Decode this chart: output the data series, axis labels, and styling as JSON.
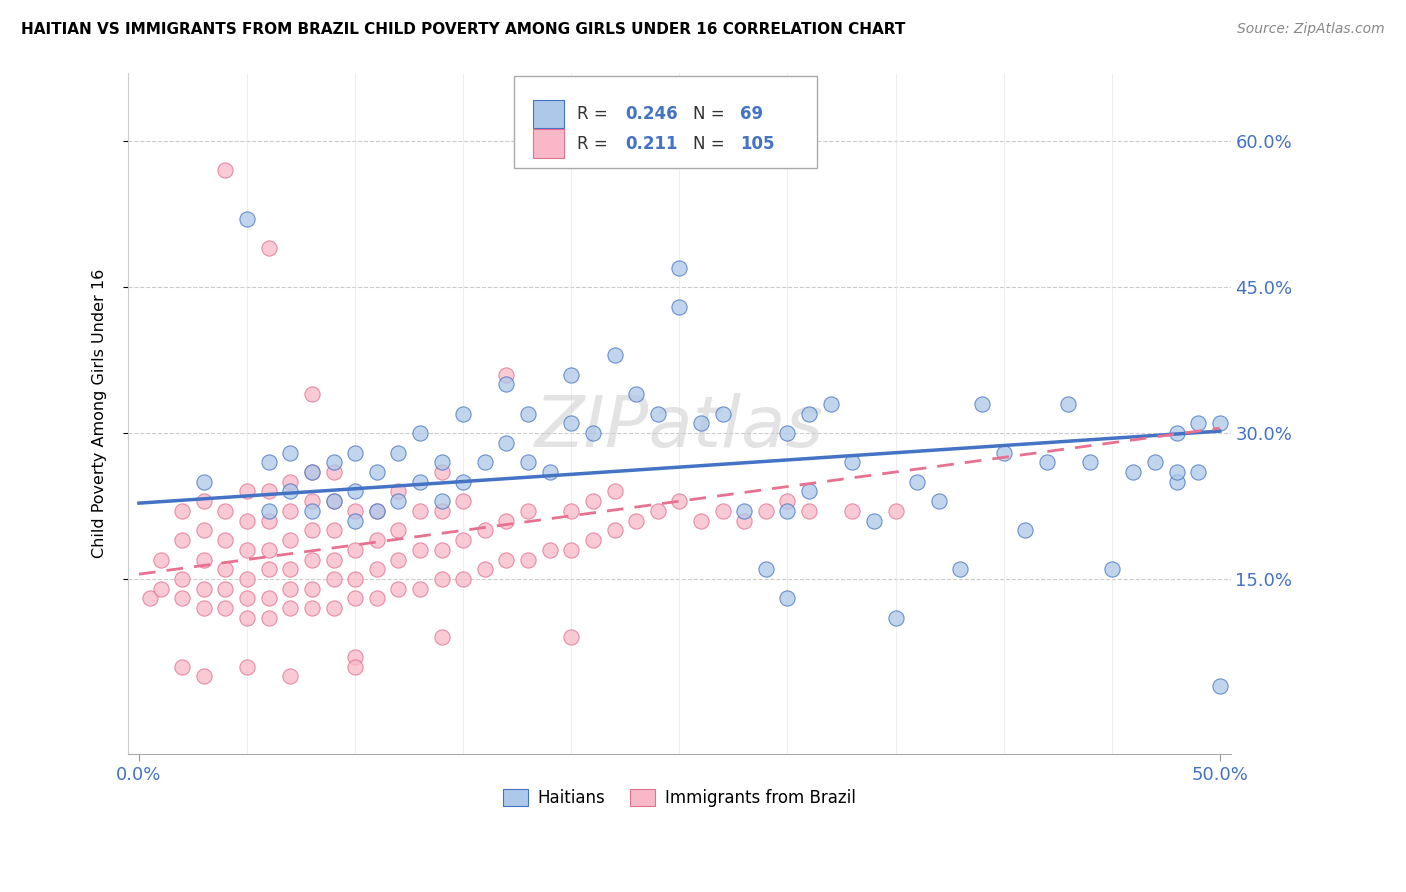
{
  "title": "HAITIAN VS IMMIGRANTS FROM BRAZIL CHILD POVERTY AMONG GIRLS UNDER 16 CORRELATION CHART",
  "source": "Source: ZipAtlas.com",
  "ylabel": "Child Poverty Among Girls Under 16",
  "xlim": [
    0.0,
    0.5
  ],
  "ylim": [
    -0.03,
    0.67
  ],
  "ytick_vals": [
    0.15,
    0.3,
    0.45,
    0.6
  ],
  "ytick_labels": [
    "15.0%",
    "30.0%",
    "45.0%",
    "60.0%"
  ],
  "color_haiti_fill": "#adc8e8",
  "color_haiti_edge": "#4472C4",
  "color_brazil_fill": "#f8b8c8",
  "color_brazil_edge": "#e07090",
  "color_haiti_line": "#4472C4",
  "color_brazil_line": "#e87090",
  "haiti_line_start_y": 0.228,
  "haiti_line_end_y": 0.302,
  "brazil_line_start_y": 0.155,
  "brazil_line_end_y": 0.305,
  "haitians_x": [
    0.03,
    0.05,
    0.06,
    0.06,
    0.07,
    0.07,
    0.08,
    0.08,
    0.09,
    0.09,
    0.1,
    0.1,
    0.1,
    0.11,
    0.11,
    0.12,
    0.12,
    0.13,
    0.13,
    0.14,
    0.14,
    0.15,
    0.15,
    0.16,
    0.17,
    0.17,
    0.18,
    0.18,
    0.19,
    0.2,
    0.2,
    0.21,
    0.22,
    0.23,
    0.24,
    0.25,
    0.25,
    0.26,
    0.27,
    0.28,
    0.29,
    0.3,
    0.3,
    0.31,
    0.32,
    0.33,
    0.34,
    0.35,
    0.36,
    0.37,
    0.38,
    0.39,
    0.4,
    0.41,
    0.42,
    0.43,
    0.44,
    0.45,
    0.46,
    0.47,
    0.48,
    0.49,
    0.49,
    0.5,
    0.5,
    0.3,
    0.31,
    0.48,
    0.48
  ],
  "haitians_y": [
    0.25,
    0.52,
    0.22,
    0.27,
    0.24,
    0.28,
    0.22,
    0.26,
    0.23,
    0.27,
    0.21,
    0.24,
    0.28,
    0.22,
    0.26,
    0.23,
    0.28,
    0.25,
    0.3,
    0.23,
    0.27,
    0.25,
    0.32,
    0.27,
    0.29,
    0.35,
    0.27,
    0.32,
    0.26,
    0.31,
    0.36,
    0.3,
    0.38,
    0.34,
    0.32,
    0.43,
    0.47,
    0.31,
    0.32,
    0.22,
    0.16,
    0.13,
    0.3,
    0.32,
    0.33,
    0.27,
    0.21,
    0.11,
    0.25,
    0.23,
    0.16,
    0.33,
    0.28,
    0.2,
    0.27,
    0.33,
    0.27,
    0.16,
    0.26,
    0.27,
    0.25,
    0.31,
    0.26,
    0.31,
    0.04,
    0.22,
    0.24,
    0.3,
    0.26
  ],
  "brazil_x": [
    0.005,
    0.01,
    0.01,
    0.02,
    0.02,
    0.02,
    0.02,
    0.03,
    0.03,
    0.03,
    0.03,
    0.03,
    0.04,
    0.04,
    0.04,
    0.04,
    0.04,
    0.05,
    0.05,
    0.05,
    0.05,
    0.05,
    0.05,
    0.06,
    0.06,
    0.06,
    0.06,
    0.06,
    0.06,
    0.07,
    0.07,
    0.07,
    0.07,
    0.07,
    0.07,
    0.08,
    0.08,
    0.08,
    0.08,
    0.08,
    0.08,
    0.09,
    0.09,
    0.09,
    0.09,
    0.09,
    0.09,
    0.1,
    0.1,
    0.1,
    0.1,
    0.11,
    0.11,
    0.11,
    0.11,
    0.12,
    0.12,
    0.12,
    0.12,
    0.13,
    0.13,
    0.13,
    0.14,
    0.14,
    0.14,
    0.14,
    0.15,
    0.15,
    0.15,
    0.16,
    0.16,
    0.17,
    0.17,
    0.18,
    0.18,
    0.19,
    0.2,
    0.2,
    0.21,
    0.21,
    0.22,
    0.22,
    0.23,
    0.24,
    0.25,
    0.26,
    0.27,
    0.28,
    0.29,
    0.3,
    0.31,
    0.33,
    0.35,
    0.04,
    0.06,
    0.08,
    0.1,
    0.14,
    0.17,
    0.2,
    0.1,
    0.07,
    0.05,
    0.03,
    0.02
  ],
  "brazil_y": [
    0.13,
    0.14,
    0.17,
    0.13,
    0.15,
    0.19,
    0.22,
    0.12,
    0.14,
    0.17,
    0.2,
    0.23,
    0.12,
    0.14,
    0.16,
    0.19,
    0.22,
    0.11,
    0.13,
    0.15,
    0.18,
    0.21,
    0.24,
    0.11,
    0.13,
    0.16,
    0.18,
    0.21,
    0.24,
    0.12,
    0.14,
    0.16,
    0.19,
    0.22,
    0.25,
    0.12,
    0.14,
    0.17,
    0.2,
    0.23,
    0.26,
    0.12,
    0.15,
    0.17,
    0.2,
    0.23,
    0.26,
    0.13,
    0.15,
    0.18,
    0.22,
    0.13,
    0.16,
    0.19,
    0.22,
    0.14,
    0.17,
    0.2,
    0.24,
    0.14,
    0.18,
    0.22,
    0.15,
    0.18,
    0.22,
    0.26,
    0.15,
    0.19,
    0.23,
    0.16,
    0.2,
    0.17,
    0.21,
    0.17,
    0.22,
    0.18,
    0.18,
    0.22,
    0.19,
    0.23,
    0.2,
    0.24,
    0.21,
    0.22,
    0.23,
    0.21,
    0.22,
    0.21,
    0.22,
    0.23,
    0.22,
    0.22,
    0.22,
    0.57,
    0.49,
    0.34,
    0.07,
    0.09,
    0.36,
    0.09,
    0.06,
    0.05,
    0.06,
    0.05,
    0.06
  ]
}
